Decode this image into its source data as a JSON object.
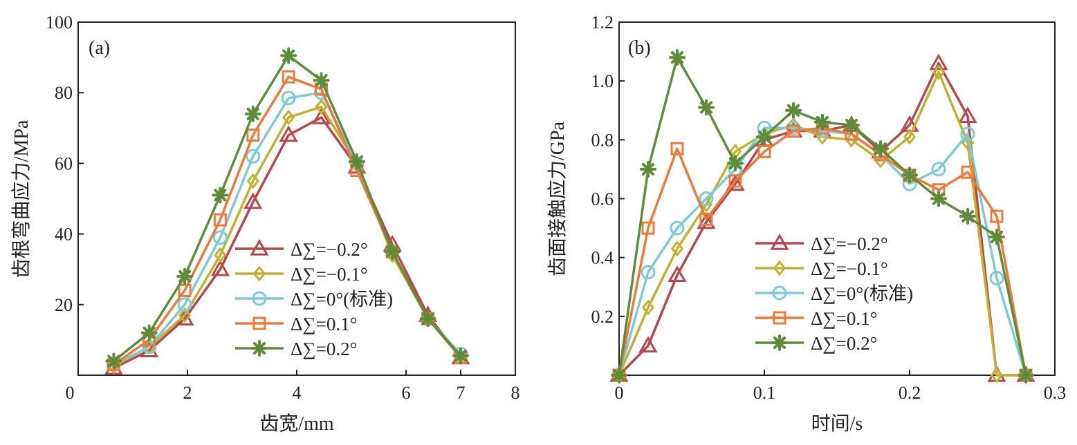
{
  "chart_data": [
    {
      "type": "line",
      "panel_label": "(a)",
      "xlabel": "齿宽/mm",
      "ylabel": "齿根弯曲应力/MPa",
      "xlim": [
        0,
        8
      ],
      "ylim": [
        0,
        100
      ],
      "xticks": [
        "0",
        "2",
        "4",
        "6",
        "7",
        "8"
      ],
      "xtick_values": [
        0,
        2,
        4,
        6,
        7,
        8
      ],
      "yticks": [
        "20",
        "40",
        "60",
        "80",
        "100"
      ],
      "ytick_values": [
        20,
        40,
        60,
        80,
        100
      ],
      "x": [
        0.65,
        1.3,
        1.95,
        2.6,
        3.2,
        3.85,
        4.45,
        5.1,
        5.75,
        6.4,
        7.0
      ],
      "legend_position": "lower-right",
      "series": [
        {
          "name": "Δ∑=−0.2°",
          "color": "#b5474d",
          "marker": "triangle",
          "values": [
            2,
            7,
            16,
            30,
            49,
            68,
            73,
            59,
            37,
            17,
            5
          ]
        },
        {
          "name": "Δ∑=−0.1°",
          "color": "#c2b02e",
          "marker": "diamond",
          "values": [
            2.5,
            8,
            17,
            34,
            55,
            73,
            76,
            60,
            34,
            16,
            5
          ]
        },
        {
          "name": "Δ∑=0°(标准)",
          "color": "#7ccbd6",
          "marker": "circle",
          "values": [
            3,
            8,
            20,
            39,
            62,
            78.5,
            80,
            60,
            35,
            16,
            6
          ]
        },
        {
          "name": "Δ∑=0.1°",
          "color": "#ec7a3a",
          "marker": "square",
          "values": [
            3,
            10,
            24,
            44,
            68,
            84.5,
            81,
            58,
            35,
            16,
            5
          ]
        },
        {
          "name": "Δ∑=0.2°",
          "color": "#5e8c3a",
          "marker": "star",
          "values": [
            4,
            12,
            28,
            51,
            74,
            90.5,
            83.5,
            60.5,
            35,
            16,
            5.5
          ]
        }
      ]
    },
    {
      "type": "line",
      "panel_label": "(b)",
      "xlabel": "时间/s",
      "ylabel": "齿面接触应力/GPa",
      "xlim": [
        0,
        0.3
      ],
      "ylim": [
        0,
        1.2
      ],
      "xticks": [
        "0",
        "0.1",
        "0.2",
        "0.3"
      ],
      "xtick_values": [
        0,
        0.1,
        0.2,
        0.3
      ],
      "yticks": [
        "0.2",
        "0.4",
        "0.6",
        "0.8",
        "1.0",
        "1.2"
      ],
      "ytick_values": [
        0.2,
        0.4,
        0.6,
        0.8,
        1.0,
        1.2
      ],
      "x": [
        0,
        0.02,
        0.04,
        0.06,
        0.08,
        0.1,
        0.12,
        0.14,
        0.16,
        0.18,
        0.2,
        0.22,
        0.24,
        0.26,
        0.28
      ],
      "legend_position": "lower-center",
      "series": [
        {
          "name": "Δ∑=−0.2°",
          "color": "#b5474d",
          "marker": "triangle",
          "values": [
            0,
            0.1,
            0.34,
            0.52,
            0.65,
            0.8,
            0.83,
            0.83,
            0.85,
            0.76,
            0.85,
            1.06,
            0.88,
            0.0,
            0.0
          ]
        },
        {
          "name": "Δ∑=−0.1°",
          "color": "#c2b02e",
          "marker": "diamond",
          "values": [
            0,
            0.23,
            0.43,
            0.58,
            0.76,
            0.82,
            0.85,
            0.81,
            0.8,
            0.73,
            0.81,
            1.03,
            0.79,
            0.0,
            0.0
          ]
        },
        {
          "name": "Δ∑=0°(标准)",
          "color": "#7ccbd6",
          "marker": "circle",
          "values": [
            0,
            0.35,
            0.5,
            0.6,
            0.7,
            0.84,
            0.84,
            0.83,
            0.82,
            0.75,
            0.65,
            0.7,
            0.82,
            0.33,
            0.0
          ]
        },
        {
          "name": "Δ∑=0.1°",
          "color": "#ec7a3a",
          "marker": "square",
          "values": [
            0,
            0.5,
            0.77,
            0.53,
            0.66,
            0.76,
            0.83,
            0.84,
            0.82,
            0.75,
            0.68,
            0.63,
            0.69,
            0.54,
            0.0
          ]
        },
        {
          "name": "Δ∑=0.2°",
          "color": "#5e8c3a",
          "marker": "star",
          "values": [
            0,
            0.7,
            1.08,
            0.91,
            0.72,
            0.81,
            0.9,
            0.86,
            0.85,
            0.77,
            0.68,
            0.6,
            0.54,
            0.47,
            0.0
          ]
        }
      ]
    }
  ]
}
